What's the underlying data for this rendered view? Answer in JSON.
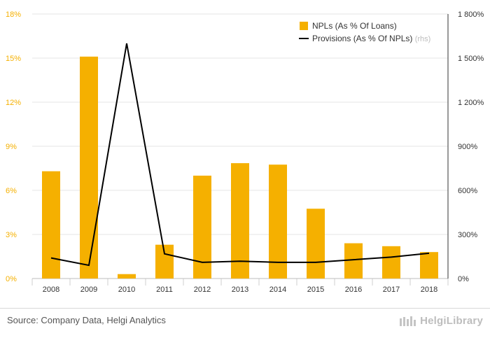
{
  "chart_data": {
    "type": "bar",
    "categories": [
      "2008",
      "2009",
      "2010",
      "2011",
      "2012",
      "2013",
      "2014",
      "2015",
      "2016",
      "2017",
      "2018"
    ],
    "series": [
      {
        "name": "NPLs (As % Of Loans)",
        "type": "bar",
        "axis": "left",
        "color": "#f5b000",
        "values": [
          7.3,
          15.1,
          0.3,
          2.3,
          7.0,
          7.85,
          7.75,
          4.75,
          2.4,
          2.2,
          1.8
        ]
      },
      {
        "name": "Provisions (As % Of NPLs)",
        "name_suffix": "(rhs)",
        "type": "line",
        "axis": "right",
        "color": "#000000",
        "values": [
          140,
          90,
          1600,
          168,
          110,
          118,
          110,
          110,
          128,
          146,
          172
        ]
      }
    ],
    "y_left": {
      "ylim": [
        0,
        18
      ],
      "ticks": [
        "0%",
        "3%",
        "6%",
        "9%",
        "12%",
        "15%",
        "18%"
      ],
      "color": "#f5b000"
    },
    "y_right": {
      "ylim": [
        0,
        1800
      ],
      "ticks": [
        "0%",
        "300%",
        "600%",
        "900%",
        "1 200%",
        "1 500%",
        "1 800%"
      ],
      "color": "#333333"
    },
    "grid": true,
    "legend_position": "top-right"
  },
  "footer": {
    "source": "Source: Company Data, Helgi Analytics",
    "brand": "HelgiLibrary"
  },
  "icons": {
    "brand_logo": "library-logo-icon"
  }
}
